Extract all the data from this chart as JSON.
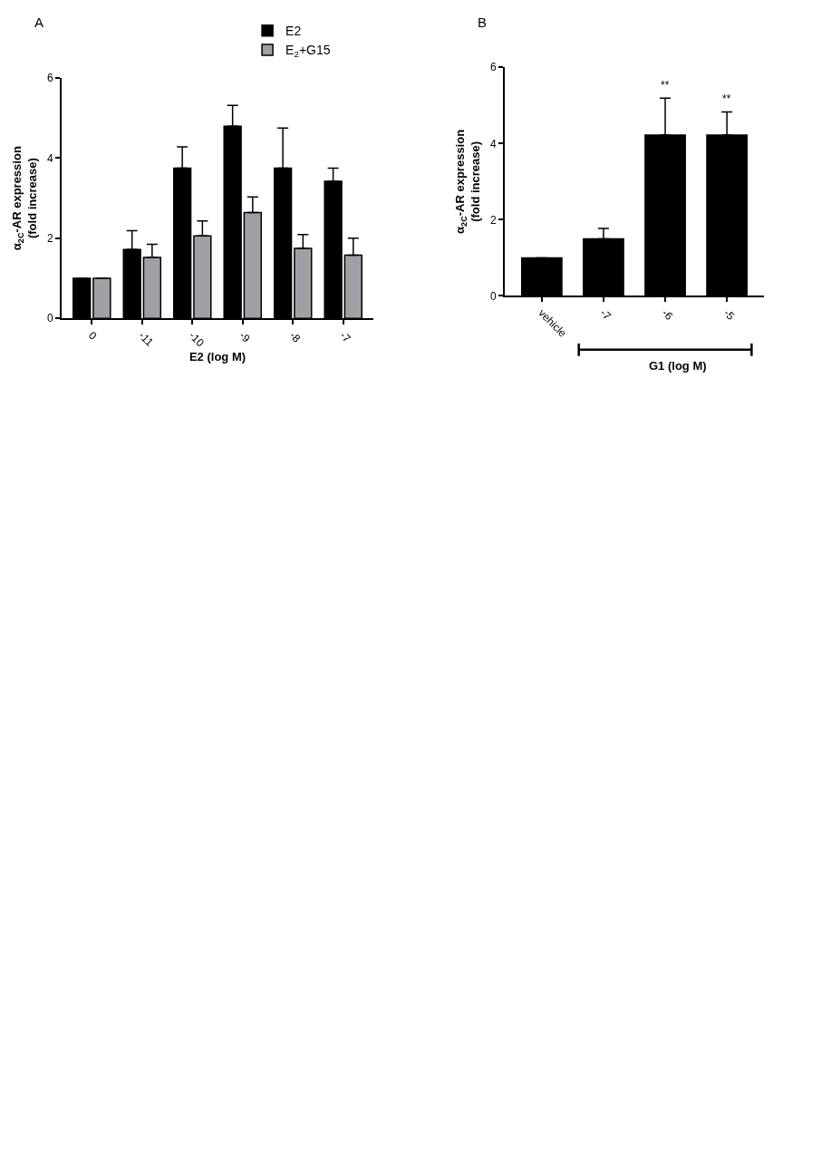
{
  "chart_data": [
    {
      "type": "bar",
      "title": "A",
      "xlabel": "E2 (log M)",
      "ylabel": "α$_{2C}$-AR expression\n(fold increase)",
      "categories": [
        "0",
        "-11",
        "-10",
        "-9",
        "-8",
        "-7"
      ],
      "series": [
        {
          "name": "E2",
          "color": "#000000",
          "values": [
            1.0,
            1.72,
            3.75,
            4.8,
            3.75,
            3.42
          ],
          "errors": [
            null,
            [
              1.72,
              2.19
            ],
            [
              3.75,
              4.28
            ],
            [
              4.8,
              5.32
            ],
            [
              3.75,
              4.75
            ],
            [
              3.42,
              3.75
            ]
          ]
        },
        {
          "name": "E$_{2}$+G15",
          "color": "#a0a0a4",
          "values": [
            1.0,
            1.52,
            2.06,
            2.64,
            1.75,
            1.58
          ],
          "errors": [
            null,
            [
              1.52,
              1.85
            ],
            [
              2.06,
              2.43
            ],
            [
              2.64,
              3.03
            ],
            [
              1.75,
              2.09
            ],
            [
              1.58,
              2.0
            ]
          ]
        }
      ],
      "ylim": [
        0,
        6
      ],
      "yticks": [
        0,
        2,
        4,
        6
      ],
      "legend": "top right"
    },
    {
      "type": "bar",
      "title": "B",
      "xlabel": "G1 (log M)",
      "ylabel": "α$_{2C}$-AR expression\n(fold increase)",
      "categories": [
        "vehicle",
        "-7",
        "-6",
        "-5"
      ],
      "series": [
        {
          "color": "#000000",
          "values": [
            1.0,
            1.5,
            4.22,
            4.22
          ],
          "errors": [
            null,
            [
              1.5,
              1.77
            ],
            [
              4.22,
              5.19
            ],
            [
              4.22,
              4.83
            ]
          ]
        }
      ],
      "annotations": [
        {
          "text": "**",
          "x": "-6",
          "y": 5.19
        },
        {
          "text": "**",
          "x": "-5",
          "y": 4.83
        }
      ],
      "ylim": [
        0,
        6
      ],
      "yticks": [
        0,
        2,
        4,
        6
      ],
      "legend": false
    }
  ]
}
